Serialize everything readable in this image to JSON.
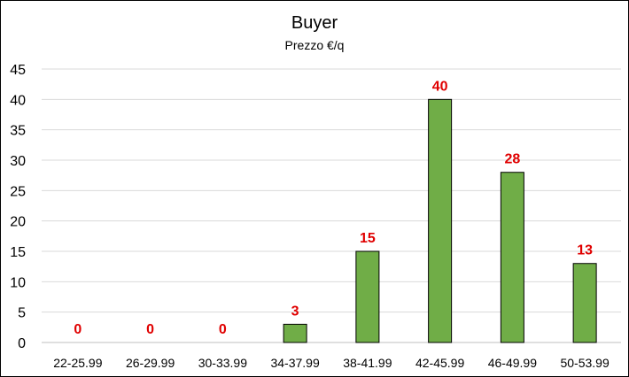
{
  "chart_data": {
    "type": "bar",
    "title": "Buyer",
    "subtitle": "Prezzo €/q",
    "xlabel": "",
    "ylabel": "",
    "categories": [
      "22-25.99",
      "26-29.99",
      "30-33.99",
      "34-37.99",
      "38-41.99",
      "42-45.99",
      "46-49.99",
      "50-53.99"
    ],
    "values": [
      0,
      0,
      0,
      3,
      15,
      40,
      28,
      13
    ],
    "ylim": [
      0,
      45
    ],
    "yticks": [
      0,
      5,
      10,
      15,
      20,
      25,
      30,
      35,
      40,
      45
    ],
    "grid": true,
    "legend": "none",
    "colors": {
      "bar": "#70ad47",
      "data_label": "#e00000"
    }
  }
}
